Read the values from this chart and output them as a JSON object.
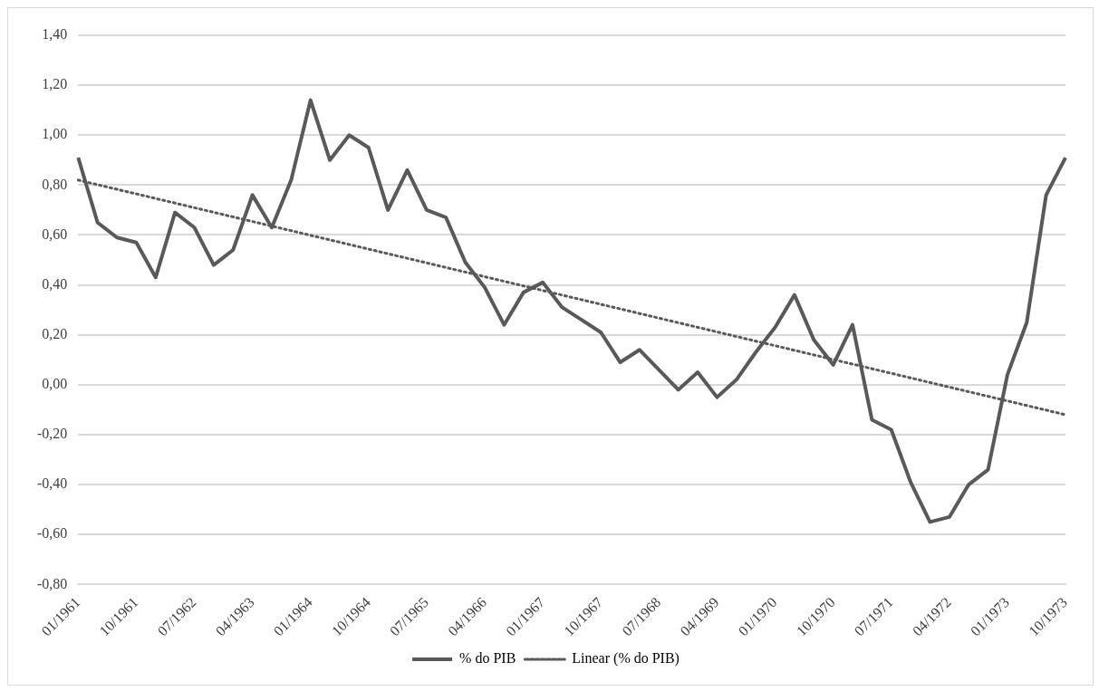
{
  "chart_data": {
    "type": "line",
    "categories": [
      "01/1961",
      null,
      null,
      "10/1961",
      null,
      null,
      "07/1962",
      null,
      null,
      "04/1963",
      null,
      null,
      "01/1964",
      null,
      null,
      "10/1964",
      null,
      null,
      "07/1965",
      null,
      null,
      "04/1966",
      null,
      null,
      "01/1967",
      null,
      null,
      "10/1967",
      null,
      null,
      "07/1968",
      null,
      null,
      "04/1969",
      null,
      null,
      "01/1970",
      null,
      null,
      "10/1970",
      null,
      null,
      "07/1971",
      null,
      null,
      "04/1972",
      null,
      null,
      "01/1973",
      null,
      null,
      "10/1973"
    ],
    "series": [
      {
        "name": "% do PIB",
        "color": "#595959",
        "line_style": "solid",
        "values": [
          0.91,
          0.65,
          0.59,
          0.57,
          0.43,
          0.69,
          0.63,
          0.48,
          0.54,
          0.76,
          0.63,
          0.82,
          1.14,
          0.9,
          1.0,
          0.95,
          0.7,
          0.86,
          0.7,
          0.67,
          0.49,
          0.39,
          0.24,
          0.37,
          0.41,
          0.31,
          0.26,
          0.21,
          0.09,
          0.14,
          0.06,
          -0.02,
          0.05,
          -0.05,
          0.02,
          0.13,
          0.23,
          0.36,
          0.18,
          0.08,
          0.24,
          -0.14,
          -0.18,
          -0.39,
          -0.55,
          -0.53,
          -0.4,
          -0.34,
          0.04,
          0.25,
          0.76,
          0.91
        ]
      },
      {
        "name": "Linear (% do PIB)",
        "color": "#595959",
        "type": "line",
        "line_style": "dotted",
        "x": [
          "01/1961",
          "10/1973"
        ],
        "values": [
          0.82,
          -0.12
        ]
      }
    ],
    "ylim": [
      -0.8,
      1.4
    ],
    "yticks": [
      {
        "value": -0.8,
        "label": "-0,80"
      },
      {
        "value": -0.6,
        "label": "-0,60"
      },
      {
        "value": -0.4,
        "label": "-0,40"
      },
      {
        "value": -0.2,
        "label": "-0,20"
      },
      {
        "value": 0,
        "label": "0,00"
      },
      {
        "value": 0.2,
        "label": "0,20"
      },
      {
        "value": 0.4,
        "label": "0,40"
      },
      {
        "value": 0.6,
        "label": "0,60"
      },
      {
        "value": 0.8,
        "label": "0,80"
      },
      {
        "value": 1.0,
        "label": "1,00"
      },
      {
        "value": 1.2,
        "label": "1,20"
      },
      {
        "value": 1.4,
        "label": "1,40"
      }
    ],
    "grid": "y",
    "legend": "bottom",
    "marker": "none"
  }
}
